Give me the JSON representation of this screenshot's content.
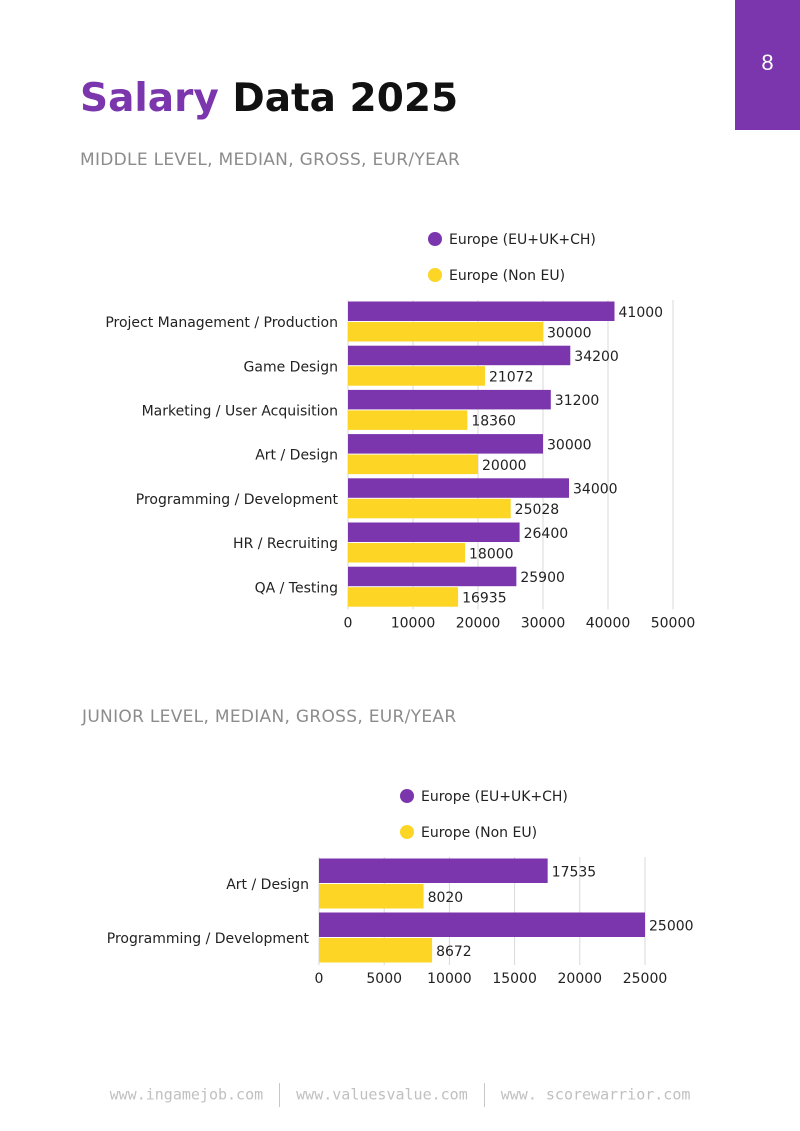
{
  "page_number": "8",
  "title": {
    "accent": "Salary",
    "rest": " Data 2025"
  },
  "footer": {
    "sites": [
      "www.ingamejob.com",
      "www.valuesvalue.com",
      "www. scorewarrior.com"
    ]
  },
  "colors": {
    "eu": "#7b35ad",
    "non_eu": "#fdd525"
  },
  "chart_data": [
    {
      "type": "bar",
      "orientation": "horizontal",
      "title": "MIDDLE LEVEL, MEDIAN, GROSS, EUR/YEAR",
      "categories": [
        "Project Management / Production",
        "Game Design",
        "Marketing / User Acquisition",
        "Art / Design",
        "Programming / Development",
        "HR / Recruiting",
        "QA / Testing"
      ],
      "series": [
        {
          "name": "Europe (EU+UK+CH)",
          "values": [
            41000,
            34200,
            31200,
            30000,
            34000,
            26400,
            25900
          ]
        },
        {
          "name": "Europe (Non EU)",
          "values": [
            30000,
            21072,
            18360,
            20000,
            25028,
            18000,
            16935
          ]
        }
      ],
      "xlim": [
        0,
        50000
      ],
      "xticks": [
        0,
        10000,
        20000,
        30000,
        40000,
        50000
      ],
      "xlabel": "",
      "ylabel": "",
      "grid": true,
      "legend": "top"
    },
    {
      "type": "bar",
      "orientation": "horizontal",
      "title": "JUNIOR LEVEL, MEDIAN, GROSS, EUR/YEAR",
      "categories": [
        "Art / Design",
        "Programming / Development"
      ],
      "series": [
        {
          "name": "Europe (EU+UK+CH)",
          "values": [
            17535,
            25000
          ]
        },
        {
          "name": "Europe (Non EU)",
          "values": [
            8020,
            8672
          ]
        }
      ],
      "xlim": [
        0,
        25000
      ],
      "xticks": [
        0,
        5000,
        10000,
        15000,
        20000,
        25000
      ],
      "xlabel": "",
      "ylabel": "",
      "grid": true,
      "legend": "top"
    }
  ]
}
